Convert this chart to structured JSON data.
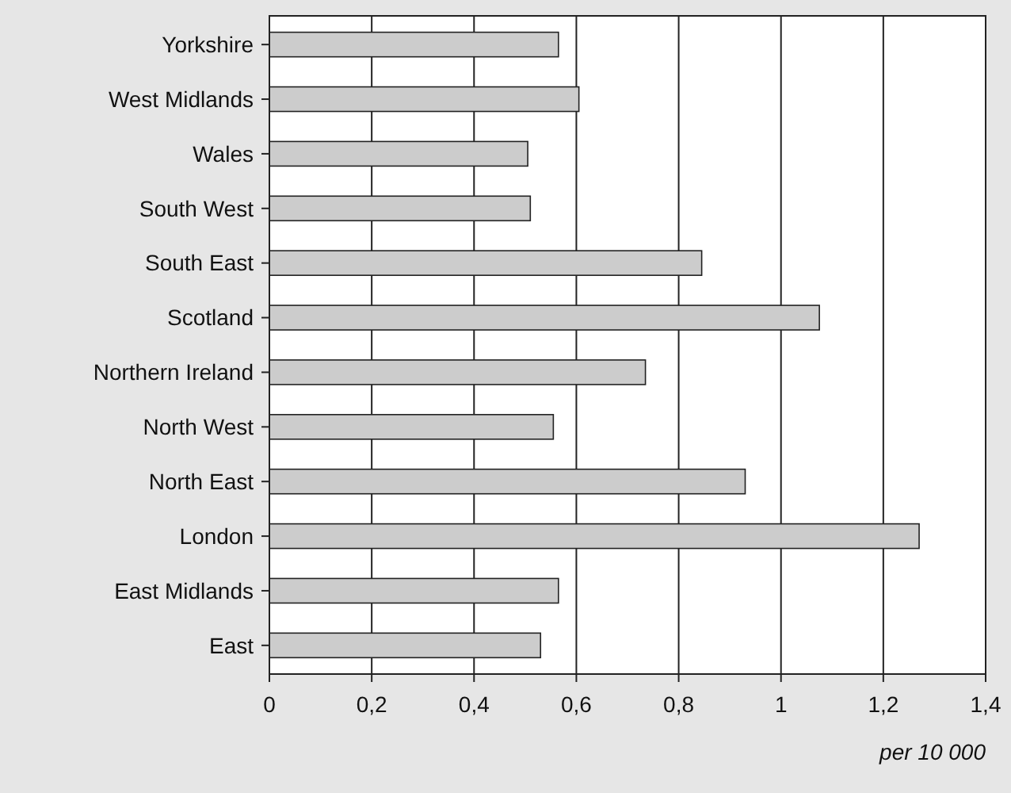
{
  "chart_data": {
    "type": "bar",
    "orientation": "horizontal",
    "categories": [
      "Yorkshire",
      "West Midlands",
      "Wales",
      "South West",
      "South East",
      "Scotland",
      "Northern Ireland",
      "North West",
      "North East",
      "London",
      "East Midlands",
      "East"
    ],
    "values": [
      0.565,
      0.605,
      0.505,
      0.51,
      0.845,
      1.075,
      0.735,
      0.555,
      0.93,
      1.27,
      0.565,
      0.53
    ],
    "color": "#cccccc",
    "xlim": [
      0,
      1.4
    ],
    "xticks": [
      0,
      {
        "value": 0.2,
        "label": "0,2"
      },
      {
        "value": 0.4,
        "label": "0,4"
      },
      {
        "value": 0.6,
        "label": "0,6"
      },
      {
        "value": 0.8,
        "label": "0,8"
      },
      1,
      {
        "value": 1.2,
        "label": "1,2"
      },
      {
        "value": 1.4,
        "label": "1,4"
      }
    ],
    "grid": "x",
    "annotations": [
      "per 10 000"
    ]
  }
}
